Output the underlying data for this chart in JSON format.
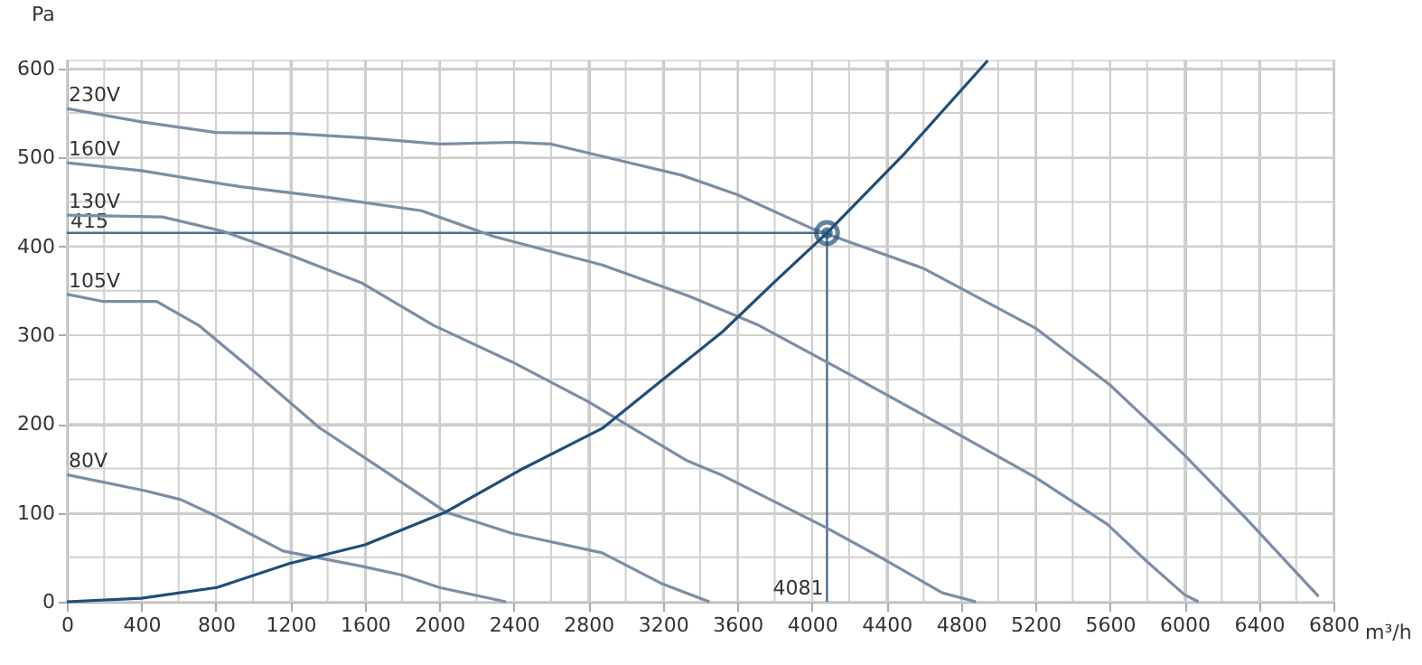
{
  "chart_data": {
    "type": "line",
    "xlabel": "m³/h",
    "ylabel": "Pa",
    "xlim": [
      0,
      6800
    ],
    "ylim": [
      0,
      610
    ],
    "xticks": [
      0,
      {
        "value": 200,
        "label": null
      },
      400,
      {
        "value": 600,
        "label": null
      },
      800,
      {
        "value": 1000,
        "label": null
      },
      1200,
      {
        "value": 1400,
        "label": null
      },
      1600,
      {
        "value": 1800,
        "label": null
      },
      2000,
      {
        "value": 2200,
        "label": null
      },
      2400,
      {
        "value": 2600,
        "label": null
      },
      2800,
      {
        "value": 3000,
        "label": null
      },
      3200,
      {
        "value": 3400,
        "label": null
      },
      3600,
      {
        "value": 3800,
        "label": null
      },
      4000,
      {
        "value": 4200,
        "label": null
      },
      4400,
      {
        "value": 4600,
        "label": null
      },
      4800,
      {
        "value": 5000,
        "label": null
      },
      5200,
      {
        "value": 5400,
        "label": null
      },
      5600,
      {
        "value": 5800,
        "label": null
      },
      6000,
      {
        "value": 6200,
        "label": null
      },
      6400,
      {
        "value": 6600,
        "label": null
      },
      6800
    ],
    "yticks": [
      0,
      {
        "value": 50,
        "label": null
      },
      100,
      {
        "value": 150,
        "label": null
      },
      200,
      {
        "value": 250,
        "label": null
      },
      300,
      {
        "value": 350,
        "label": null
      },
      400,
      {
        "value": 450,
        "label": null
      },
      500,
      {
        "value": 550,
        "label": null
      },
      600
    ],
    "grid": true,
    "legend": false,
    "line_style": "solid",
    "marker": "none",
    "series": [
      {
        "name": "230V",
        "color": "#7a8ea6",
        "x": [
          0,
          400,
          800,
          1200,
          1600,
          2000,
          2400,
          2600,
          2900,
          3300,
          3600,
          4000,
          4200,
          4600,
          5200,
          5600,
          6000,
          6330,
          6720
        ],
        "values": [
          555,
          540,
          528,
          527,
          522,
          515,
          517,
          515,
          500,
          480,
          458,
          420,
          405,
          375,
          308,
          244,
          165,
          94,
          6
        ]
      },
      {
        "name": "160V",
        "color": "#7a8ea6",
        "x": [
          0,
          400,
          932,
          1400,
          1904,
          2292,
          2874,
          3327,
          3715,
          4200,
          4782,
          5200,
          5587,
          5800,
          6000,
          6075
        ],
        "values": [
          494,
          485,
          467,
          455,
          440,
          411,
          379,
          345,
          311,
          256,
          189,
          140,
          87,
          45,
          8,
          0
        ]
      },
      {
        "name": "130V",
        "color": "#7a8ea6",
        "x": [
          0,
          514,
          836,
          1200,
          1581,
          1969,
          2389,
          2800,
          3327,
          3521,
          4071,
          4394,
          4700,
          4880
        ],
        "values": [
          435,
          433,
          417,
          390,
          359,
          311,
          270,
          225,
          159,
          142,
          84,
          47,
          10,
          0
        ]
      },
      {
        "name": "105V",
        "color": "#7a8ea6",
        "x": [
          0,
          191,
          482,
          708,
          1000,
          1355,
          1700,
          2034,
          2389,
          2874,
          3198,
          3450
        ],
        "values": [
          346,
          338,
          338,
          311,
          260,
          196,
          148,
          101,
          77,
          55,
          20,
          0
        ]
      },
      {
        "name": "80V",
        "color": "#7a8ea6",
        "x": [
          0,
          417,
          611,
          805,
          1161,
          1581,
          1800,
          2001,
          2357
        ],
        "values": [
          143,
          125,
          115,
          96,
          57,
          40,
          30,
          16,
          0
        ]
      },
      {
        "color": "#1f4e79",
        "x": [
          0,
          400,
          805,
          1193,
          1600,
          2034,
          2450,
          2874,
          3200,
          3521,
          3800,
          4081,
          4500,
          4944
        ],
        "values": [
          0,
          4,
          16,
          43,
          64,
          101,
          150,
          195,
          250,
          304,
          360,
          415,
          505,
          609
        ]
      },
      {
        "type": "scatter",
        "marker": "circle",
        "color": "#1f4e79",
        "x": [
          4081
        ],
        "values": [
          415
        ]
      }
    ],
    "ref_lines": [
      {
        "axis": "y",
        "value": 415,
        "label": "415",
        "color": "#4a6f96"
      },
      {
        "axis": "x",
        "value": 4081,
        "label": "4081",
        "color": "#4a6f96"
      }
    ]
  }
}
